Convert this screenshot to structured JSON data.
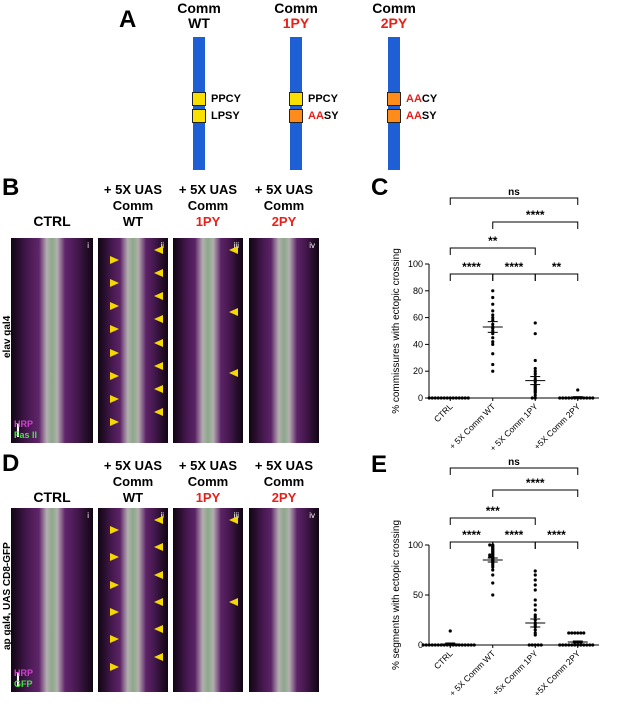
{
  "panels": {
    "A": "A",
    "B": "B",
    "C": "C",
    "D": "D",
    "E": "E"
  },
  "constructs": [
    {
      "line1": "Comm",
      "line2": "WT",
      "line2_red": false,
      "seq_top": [
        {
          "t": "PPCY",
          "red": ""
        }
      ],
      "seq_bottom": [
        {
          "t": "LPSY",
          "red": ""
        }
      ],
      "box_top": "#f8e000",
      "box_bottom": "#f8e000"
    },
    {
      "line1": "Comm",
      "line2": "1PY",
      "line2_red": true,
      "seq_top": [
        {
          "t": "PPCY",
          "red": ""
        }
      ],
      "seq_bottom": [
        {
          "t": "SY",
          "red": "AA"
        }
      ],
      "box_top": "#f8e000",
      "box_bottom": "#ff8c1a"
    },
    {
      "line1": "Comm",
      "line2": "2PY",
      "line2_red": true,
      "seq_top": [
        {
          "t": "CY",
          "red": "AA"
        }
      ],
      "seq_bottom": [
        {
          "t": "SY",
          "red": "AA"
        }
      ],
      "box_top": "#ff8c1a",
      "box_bottom": "#ff8c1a"
    }
  ],
  "colors": {
    "bar": "#1f5fd6",
    "yellow": "#f8e000",
    "orange": "#ff8c1a",
    "red_text": "#e8201a",
    "hrp": "#d040d0",
    "fas": "#3ee83e"
  },
  "column_heads": [
    {
      "l1": "CTRL",
      "l2": "",
      "l3": "",
      "l3_red": false
    },
    {
      "l1": "+ 5X UAS",
      "l2": "Comm",
      "l3": "WT",
      "l3_red": false
    },
    {
      "l1": "+ 5X UAS",
      "l2": "Comm",
      "l3": "1PY",
      "l3_red": true
    },
    {
      "l1": "+ 5X UAS",
      "l2": "Comm",
      "l3": "2PY",
      "l3_red": true
    }
  ],
  "roman": [
    "i",
    "ii",
    "iii",
    "iv"
  ],
  "row_B": {
    "side_label": "elav gal4",
    "legend1": "HRP",
    "legend2": "Fas II"
  },
  "row_D": {
    "side_label": "ap gal4, UAS CD8-GFP",
    "legend1": "HRP",
    "legend2": "GFP"
  },
  "chart_data": [
    {
      "type": "scatter",
      "panel": "C",
      "ylabel": "% commissures with ectopic crossing",
      "categories": [
        "CTRL",
        "+ 5X Comm WT",
        "+ 5X Comm 1PY",
        "+5X Comm 2PY"
      ],
      "ylim": [
        0,
        100
      ],
      "yticks": [
        0,
        20,
        40,
        60,
        80,
        100
      ],
      "means": [
        0,
        53,
        13,
        0.5
      ],
      "sem": [
        0,
        4,
        3,
        0.5
      ],
      "points": [
        [
          0,
          0,
          0,
          0,
          0,
          0,
          0,
          0,
          0,
          0,
          0,
          0,
          0,
          0
        ],
        [
          20,
          25,
          33,
          40,
          42,
          45,
          48,
          50,
          52,
          53,
          55,
          58,
          60,
          62,
          65,
          70,
          75,
          80
        ],
        [
          0,
          0,
          2,
          4,
          5,
          6,
          7,
          8,
          9,
          10,
          12,
          14,
          16,
          18,
          20,
          22,
          28,
          48,
          56
        ],
        [
          0,
          0,
          0,
          0,
          0,
          0,
          0,
          0,
          0,
          0,
          0,
          0,
          6
        ]
      ],
      "comparisons": [
        {
          "from": 0,
          "to": 3,
          "label": "ns"
        },
        {
          "from": 1,
          "to": 3,
          "label": "****"
        },
        {
          "from": 0,
          "to": 2,
          "label": "**"
        },
        {
          "from": 0,
          "to": 1,
          "label": "****"
        },
        {
          "from": 1,
          "to": 2,
          "label": "****"
        },
        {
          "from": 2,
          "to": 3,
          "label": "**"
        }
      ]
    },
    {
      "type": "scatter",
      "panel": "E",
      "ylabel": "% segments with ectopic crossing",
      "categories": [
        "CTRL",
        "+ 5X Comm WT",
        "+5x Comm 1PY",
        "+5X Comm 2PY"
      ],
      "ylim": [
        0,
        100
      ],
      "yticks": [
        0,
        50,
        100
      ],
      "means": [
        1,
        85,
        22,
        3
      ],
      "sem": [
        1,
        2,
        4,
        1
      ],
      "points": [
        [
          0,
          0,
          0,
          0,
          0,
          0,
          0,
          0,
          0,
          0,
          0,
          0,
          0,
          0,
          0,
          0,
          0,
          0,
          14
        ],
        [
          50,
          62,
          70,
          75,
          78,
          80,
          82,
          83,
          84,
          85,
          86,
          87,
          88,
          88,
          89,
          90,
          90,
          91,
          92,
          93,
          94,
          95,
          96,
          97,
          98,
          99,
          100,
          100
        ],
        [
          0,
          0,
          0,
          0,
          0,
          10,
          12,
          15,
          18,
          20,
          22,
          25,
          28,
          30,
          35,
          40,
          45,
          55,
          60,
          65,
          70,
          74
        ],
        [
          0,
          0,
          0,
          0,
          0,
          0,
          0,
          0,
          0,
          0,
          0,
          0,
          12,
          12,
          12,
          12,
          12,
          12
        ]
      ],
      "comparisons": [
        {
          "from": 0,
          "to": 3,
          "label": "ns"
        },
        {
          "from": 1,
          "to": 3,
          "label": "****"
        },
        {
          "from": 0,
          "to": 2,
          "label": "***"
        },
        {
          "from": 0,
          "to": 1,
          "label": "****"
        },
        {
          "from": 1,
          "to": 2,
          "label": "****"
        },
        {
          "from": 2,
          "to": 3,
          "label": "****"
        }
      ]
    }
  ]
}
